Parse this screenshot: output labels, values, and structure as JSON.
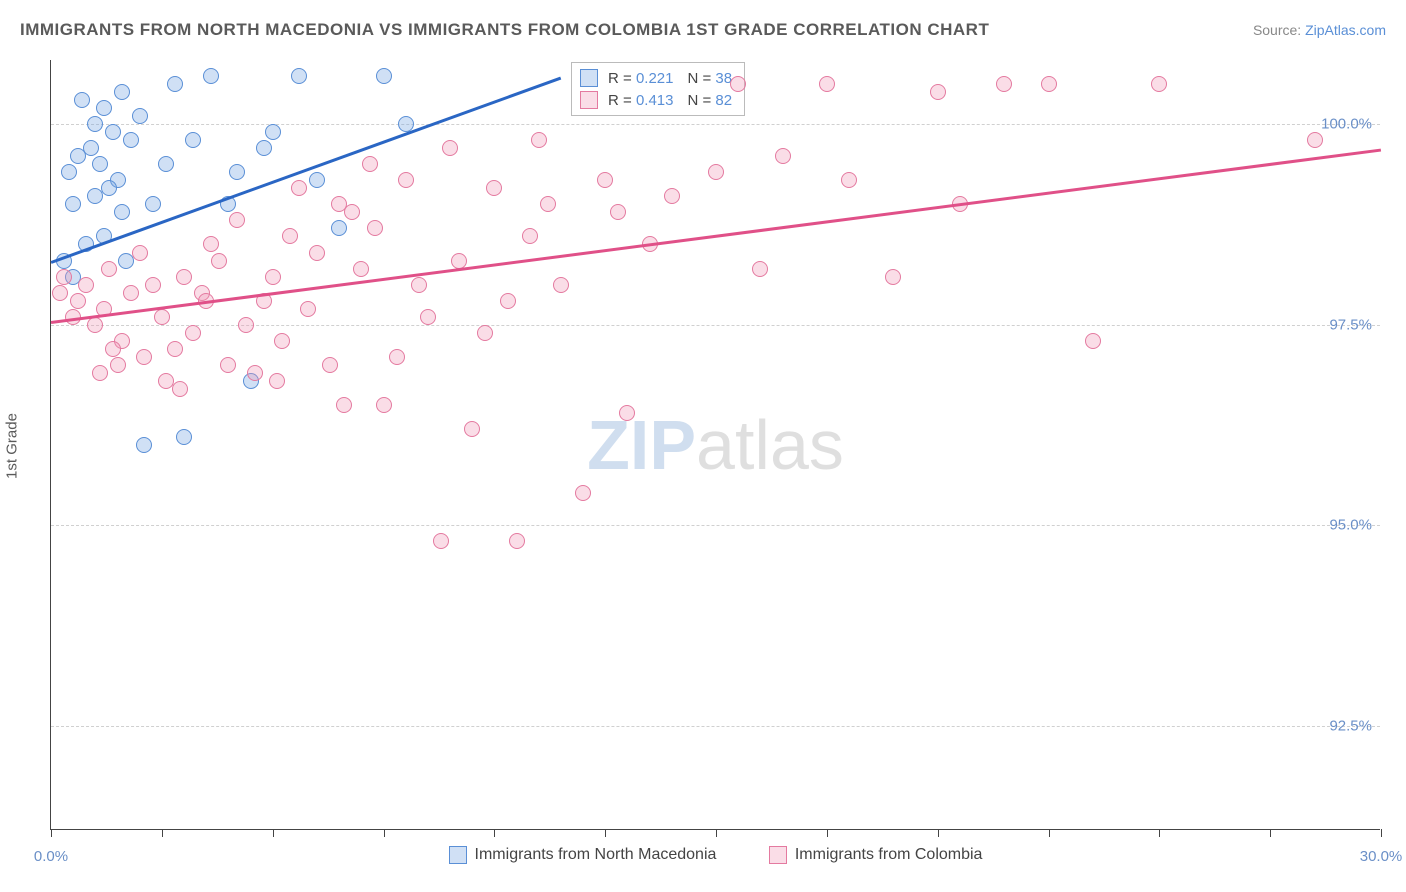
{
  "title": "IMMIGRANTS FROM NORTH MACEDONIA VS IMMIGRANTS FROM COLOMBIA 1ST GRADE CORRELATION CHART",
  "source_prefix": "Source: ",
  "source_name": "ZipAtlas.com",
  "ylabel": "1st Grade",
  "watermark_a": "ZIP",
  "watermark_b": "atlas",
  "chart": {
    "type": "scatter",
    "xlim": [
      0,
      30
    ],
    "ylim": [
      91.2,
      100.8
    ],
    "yticks": [
      92.5,
      95.0,
      97.5,
      100.0
    ],
    "ytick_labels": [
      "92.5%",
      "95.0%",
      "97.5%",
      "100.0%"
    ],
    "xtick_positions": [
      0,
      2.5,
      5,
      7.5,
      10,
      12.5,
      15,
      17.5,
      20,
      22.5,
      25,
      27.5,
      30
    ],
    "xtick_labels_shown": {
      "0": "0.0%",
      "30": "30.0%"
    },
    "background_color": "#ffffff",
    "grid_color": "#d0d0d0"
  },
  "series": [
    {
      "name": "Immigrants from North Macedonia",
      "color_fill": "rgba(120,165,225,0.35)",
      "color_stroke": "#5a8fd6",
      "trend_color": "#2a66c4",
      "r_value": "0.221",
      "n_value": "38",
      "trend": {
        "x1": 0,
        "y1": 98.3,
        "x2": 11.5,
        "y2": 100.6
      },
      "points": [
        [
          0.3,
          98.3
        ],
        [
          0.5,
          99.0
        ],
        [
          0.5,
          98.1
        ],
        [
          0.6,
          99.6
        ],
        [
          0.7,
          100.3
        ],
        [
          0.8,
          98.5
        ],
        [
          0.9,
          99.7
        ],
        [
          1.0,
          100.0
        ],
        [
          1.0,
          99.1
        ],
        [
          1.1,
          99.5
        ],
        [
          1.2,
          100.2
        ],
        [
          1.2,
          98.6
        ],
        [
          1.4,
          99.9
        ],
        [
          1.5,
          99.3
        ],
        [
          1.6,
          100.4
        ],
        [
          1.7,
          98.3
        ],
        [
          1.8,
          99.8
        ],
        [
          2.0,
          100.1
        ],
        [
          2.1,
          96.0
        ],
        [
          2.6,
          99.5
        ],
        [
          2.8,
          100.5
        ],
        [
          3.0,
          96.1
        ],
        [
          3.2,
          99.8
        ],
        [
          3.6,
          100.6
        ],
        [
          4.0,
          99.0
        ],
        [
          4.2,
          99.4
        ],
        [
          4.5,
          96.8
        ],
        [
          4.8,
          99.7
        ],
        [
          5.0,
          99.9
        ],
        [
          5.6,
          100.6
        ],
        [
          6.0,
          99.3
        ],
        [
          6.5,
          98.7
        ],
        [
          7.5,
          100.6
        ],
        [
          8.0,
          100.0
        ],
        [
          1.3,
          99.2
        ],
        [
          1.6,
          98.9
        ],
        [
          2.3,
          99.0
        ],
        [
          0.4,
          99.4
        ]
      ]
    },
    {
      "name": "Immigrants from Colombia",
      "color_fill": "rgba(240,150,180,0.32)",
      "color_stroke": "#e47aa0",
      "trend_color": "#e05088",
      "r_value": "0.413",
      "n_value": "82",
      "trend": {
        "x1": 0,
        "y1": 97.55,
        "x2": 30,
        "y2": 99.7
      },
      "points": [
        [
          0.2,
          97.9
        ],
        [
          0.3,
          98.1
        ],
        [
          0.5,
          97.6
        ],
        [
          0.6,
          97.8
        ],
        [
          0.8,
          98.0
        ],
        [
          1.0,
          97.5
        ],
        [
          1.2,
          97.7
        ],
        [
          1.3,
          98.2
        ],
        [
          1.5,
          97.0
        ],
        [
          1.6,
          97.3
        ],
        [
          1.8,
          97.9
        ],
        [
          2.0,
          98.4
        ],
        [
          2.1,
          97.1
        ],
        [
          2.3,
          98.0
        ],
        [
          2.5,
          97.6
        ],
        [
          2.6,
          96.8
        ],
        [
          2.8,
          97.2
        ],
        [
          3.0,
          98.1
        ],
        [
          3.2,
          97.4
        ],
        [
          3.4,
          97.9
        ],
        [
          3.6,
          98.5
        ],
        [
          3.8,
          98.3
        ],
        [
          4.0,
          97.0
        ],
        [
          4.2,
          98.8
        ],
        [
          4.4,
          97.5
        ],
        [
          4.6,
          96.9
        ],
        [
          4.8,
          97.8
        ],
        [
          5.0,
          98.1
        ],
        [
          5.2,
          97.3
        ],
        [
          5.4,
          98.6
        ],
        [
          5.6,
          99.2
        ],
        [
          5.8,
          97.7
        ],
        [
          6.0,
          98.4
        ],
        [
          6.3,
          97.0
        ],
        [
          6.5,
          99.0
        ],
        [
          6.8,
          98.9
        ],
        [
          7.0,
          98.2
        ],
        [
          7.2,
          99.5
        ],
        [
          7.5,
          96.5
        ],
        [
          7.8,
          97.1
        ],
        [
          8.0,
          99.3
        ],
        [
          8.3,
          98.0
        ],
        [
          8.5,
          97.6
        ],
        [
          8.8,
          94.8
        ],
        [
          9.0,
          99.7
        ],
        [
          9.2,
          98.3
        ],
        [
          9.5,
          96.2
        ],
        [
          10.0,
          99.2
        ],
        [
          10.3,
          97.8
        ],
        [
          10.5,
          94.8
        ],
        [
          10.8,
          98.6
        ],
        [
          11.0,
          99.8
        ],
        [
          11.5,
          98.0
        ],
        [
          12.0,
          95.4
        ],
        [
          12.5,
          99.3
        ],
        [
          13.0,
          96.4
        ],
        [
          13.5,
          98.5
        ],
        [
          14.0,
          99.1
        ],
        [
          15.0,
          99.4
        ],
        [
          15.5,
          100.5
        ],
        [
          16.0,
          98.2
        ],
        [
          16.5,
          99.6
        ],
        [
          17.5,
          100.5
        ],
        [
          18.0,
          99.3
        ],
        [
          19.0,
          98.1
        ],
        [
          20.0,
          100.4
        ],
        [
          20.5,
          99.0
        ],
        [
          21.5,
          100.5
        ],
        [
          22.5,
          100.5
        ],
        [
          23.5,
          97.3
        ],
        [
          25.0,
          100.5
        ],
        [
          28.5,
          99.8
        ],
        [
          1.1,
          96.9
        ],
        [
          1.4,
          97.2
        ],
        [
          2.9,
          96.7
        ],
        [
          3.5,
          97.8
        ],
        [
          5.1,
          96.8
        ],
        [
          6.6,
          96.5
        ],
        [
          7.3,
          98.7
        ],
        [
          9.8,
          97.4
        ],
        [
          11.2,
          99.0
        ],
        [
          12.8,
          98.9
        ]
      ]
    }
  ],
  "legend_top": {
    "r_label": "R =",
    "n_label": "N ="
  },
  "footer_legend": [
    {
      "label": "Immigrants from North Macedonia",
      "fill": "rgba(120,165,225,0.35)",
      "stroke": "#5a8fd6"
    },
    {
      "label": "Immigrants from Colombia",
      "fill": "rgba(240,150,180,0.32)",
      "stroke": "#e47aa0"
    }
  ]
}
